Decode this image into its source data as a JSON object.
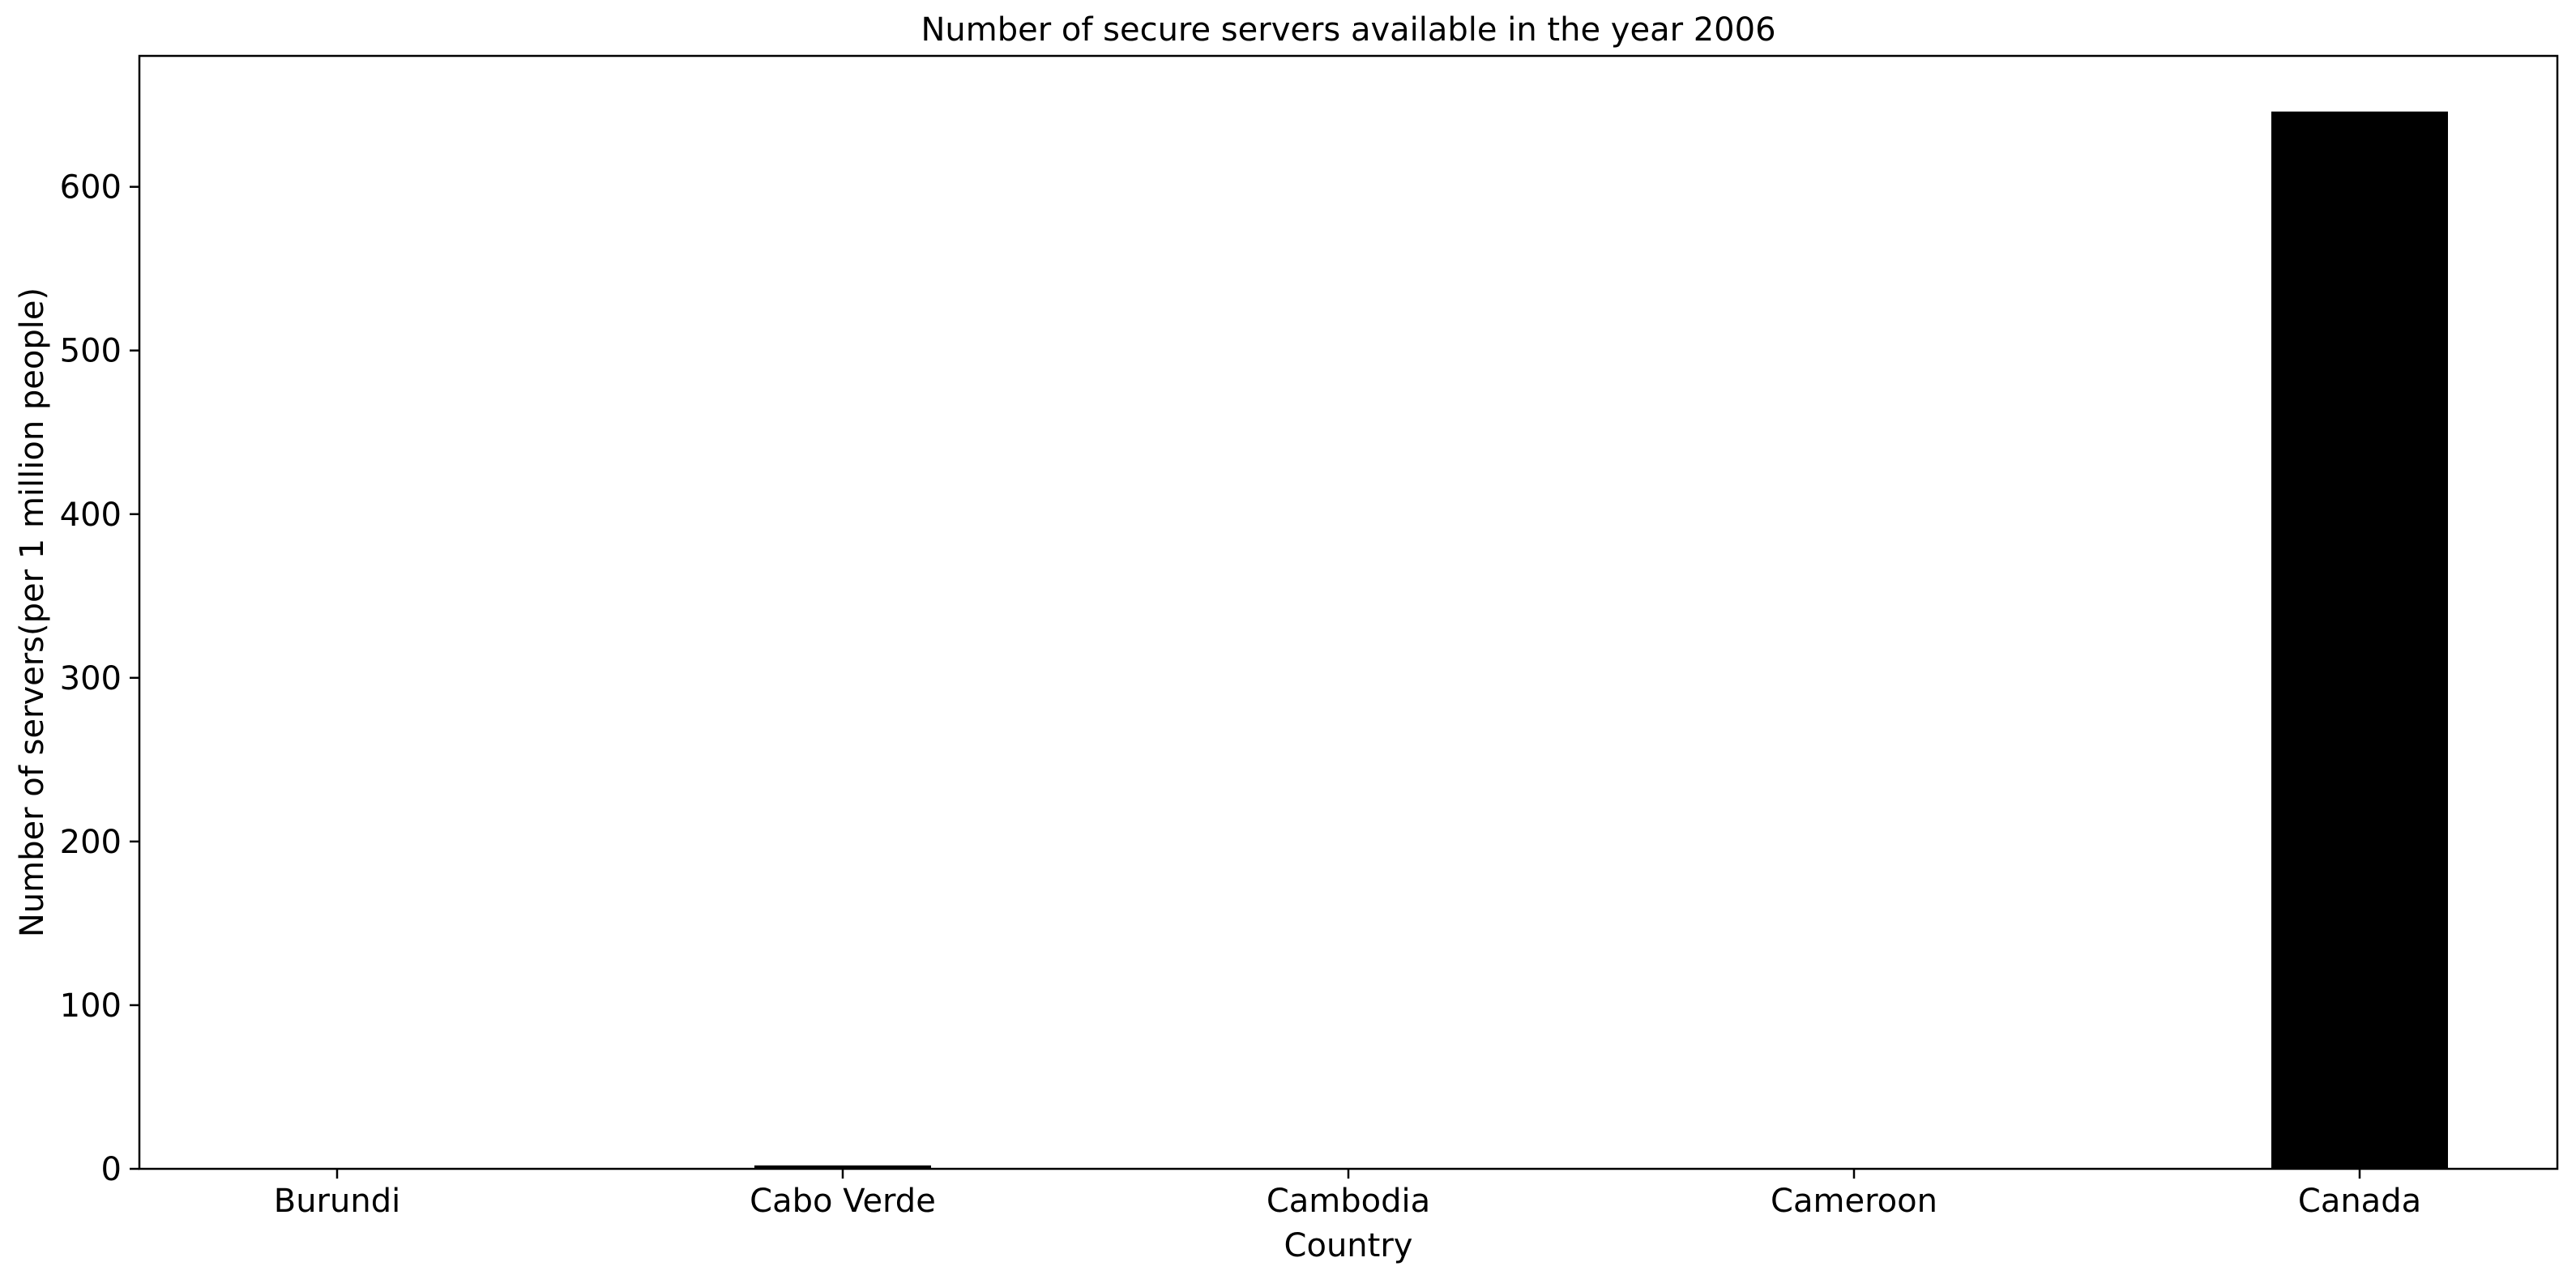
{
  "chart_data": {
    "type": "bar",
    "title": "Number of secure servers available in the year 2006",
    "xlabel": "Country",
    "ylabel": "Number of servers(per 1 million people)",
    "categories": [
      "Burundi",
      "Cabo Verde",
      "Cambodia",
      "Cameroon",
      "Canada"
    ],
    "values": [
      0.14,
      2.1,
      0.4,
      0.25,
      646
    ],
    "ylim": [
      0,
      680
    ],
    "yticks": [
      0,
      100,
      200,
      300,
      400,
      500,
      600
    ],
    "grid": false,
    "legend": "none",
    "bar_color": "#000000"
  }
}
